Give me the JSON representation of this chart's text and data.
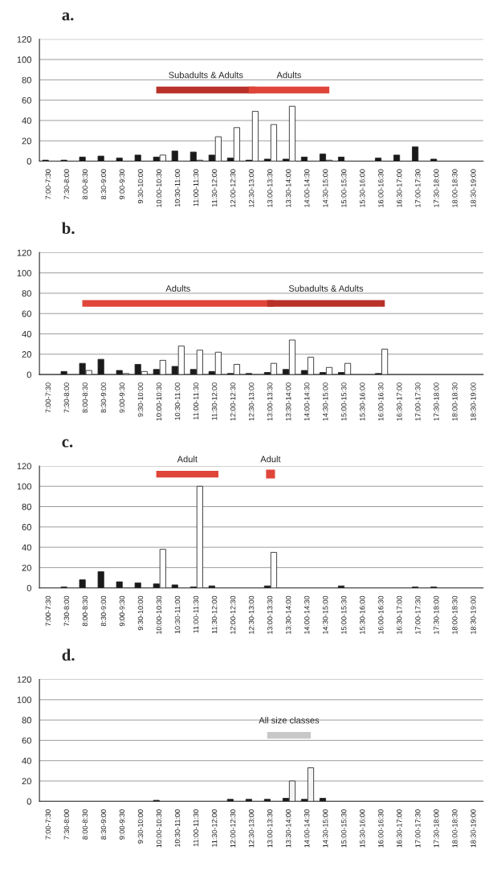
{
  "chart_data": [
    {
      "type": "bar",
      "title": "a.",
      "categories": [
        "7:00-7:30",
        "7:30-8:00",
        "8:00-8:30",
        "8:30-9:00",
        "9:00-9:30",
        "9:30-10:00",
        "10:00-10:30",
        "10:30-11:00",
        "11:00-11:30",
        "11:30-12:00",
        "12:00-12:30",
        "12:30-13:00",
        "13:00-13:30",
        "13:30-14:00",
        "14:00-14:30",
        "14:30-15:00",
        "15:00-15:30",
        "15:30-16:00",
        "16:00-16:30",
        "16:30-17:00",
        "17:00-17:30",
        "17:30-18:00",
        "18:00-18:30",
        "18:30-19:00"
      ],
      "series": [
        {
          "color": "#1a1a1a",
          "values": [
            1,
            1,
            4,
            5,
            3,
            6,
            4,
            10,
            9,
            6,
            3,
            1,
            2,
            2,
            4,
            7,
            4,
            0,
            3,
            6,
            14,
            2,
            0,
            0
          ]
        },
        {
          "color": "#ffffff",
          "values": [
            0,
            0,
            0,
            0,
            0,
            0,
            6,
            0,
            1,
            24,
            33,
            49,
            36,
            54,
            0,
            1,
            0,
            0,
            0,
            0,
            0,
            0,
            0,
            0
          ]
        },
        {
          "type": "line",
          "name": "Subadults & Adults",
          "color": "#b8322a",
          "values": [
            null,
            null,
            null,
            null,
            null,
            null,
            70,
            70,
            70,
            70,
            70,
            70,
            null,
            null,
            null,
            null,
            null,
            null,
            null,
            null,
            null,
            null,
            null,
            null
          ]
        },
        {
          "type": "line",
          "name": "Adults",
          "color": "#e0453a",
          "values": [
            null,
            null,
            null,
            null,
            null,
            null,
            null,
            null,
            null,
            null,
            null,
            70,
            70,
            70,
            70,
            70,
            null,
            null,
            null,
            null,
            null,
            null,
            null,
            null
          ]
        }
      ],
      "ylim": [
        0,
        120
      ],
      "yticks": [
        0,
        20,
        40,
        60,
        80,
        100,
        120
      ],
      "grid": "y"
    },
    {
      "type": "bar",
      "title": "b.",
      "categories": [
        "7:00-7:30",
        "7:30-8:00",
        "8:00-8:30",
        "8:30-9:00",
        "9:00-9:30",
        "9:30-10:00",
        "10:00-10:30",
        "10:30-11:00",
        "11:00-11:30",
        "11:30-12:00",
        "12:00-12:30",
        "12:30-13:00",
        "13:00-13:30",
        "13:30-14:00",
        "14:00-14:30",
        "14:30-15:00",
        "15:00-15:30",
        "15:30-16:00",
        "16:00-16:30",
        "16:30-17:00",
        "17:00-17:30",
        "17:30-18:00",
        "18:00-18:30",
        "18:30-19:00"
      ],
      "series": [
        {
          "color": "#1a1a1a",
          "values": [
            0,
            3,
            11,
            15,
            4,
            10,
            5,
            8,
            5,
            3,
            1,
            1,
            2,
            5,
            4,
            2,
            2,
            0,
            1,
            0,
            0,
            0,
            0,
            0
          ]
        },
        {
          "color": "#ffffff",
          "values": [
            0,
            0,
            4,
            0,
            1,
            3,
            14,
            28,
            24,
            22,
            10,
            0,
            11,
            34,
            17,
            7,
            11,
            0,
            25,
            0,
            0,
            0,
            0,
            0
          ]
        },
        {
          "type": "line",
          "name": "Adults",
          "color": "#e0453a",
          "values": [
            null,
            null,
            70,
            70,
            70,
            70,
            70,
            70,
            70,
            70,
            70,
            70,
            70,
            null,
            null,
            null,
            null,
            null,
            null,
            null,
            null,
            null,
            null,
            null
          ]
        },
        {
          "type": "line",
          "name": "Subadults & Adults",
          "color": "#b8322a",
          "values": [
            null,
            null,
            null,
            null,
            null,
            null,
            null,
            null,
            null,
            null,
            null,
            null,
            70,
            70,
            70,
            70,
            70,
            70,
            70,
            null,
            null,
            null,
            null,
            null
          ]
        }
      ],
      "ylim": [
        0,
        120
      ],
      "yticks": [
        0,
        20,
        40,
        60,
        80,
        100,
        120
      ],
      "grid": "y"
    },
    {
      "type": "bar",
      "title": "c.",
      "categories": [
        "7:00-7:30",
        "7:30-8:00",
        "8:00-8:30",
        "8:30-9:00",
        "9:00-9:30",
        "9:30-10:00",
        "10:00-10:30",
        "10:30-11:00",
        "11:00-11:30",
        "11:30-12:00",
        "12:00-12:30",
        "12:30-13:00",
        "13:00-13:30",
        "13:30-14:00",
        "14:00-14:30",
        "14:30-15:00",
        "15:00-15:30",
        "15:30-16:00",
        "16:00-16:30",
        "16:30-17:00",
        "17:00-17:30",
        "17:30-18:00",
        "18:00-18:30",
        "18:30-19:00"
      ],
      "series": [
        {
          "color": "#1a1a1a",
          "values": [
            0,
            1,
            8,
            16,
            6,
            5,
            4,
            3,
            1,
            2,
            0,
            0,
            2,
            0,
            0,
            0,
            2,
            0,
            0,
            0,
            1,
            1,
            0,
            0
          ]
        },
        {
          "color": "#ffffff",
          "values": [
            0,
            0,
            0,
            0,
            0,
            0,
            38,
            0,
            100,
            null,
            0,
            0,
            35,
            0,
            0,
            0,
            0,
            0,
            0,
            0,
            0,
            0,
            0,
            0
          ]
        },
        {
          "type": "line",
          "name": "Adult",
          "color": "#e0453a",
          "values": [
            null,
            null,
            null,
            null,
            null,
            null,
            112,
            112,
            112,
            112,
            null,
            null,
            null,
            null,
            null,
            null,
            null,
            null,
            null,
            null,
            null,
            null,
            null,
            null
          ]
        },
        {
          "type": "line",
          "name": "Adult",
          "color": "#e0453a",
          "marker": "square",
          "values": [
            null,
            null,
            null,
            null,
            null,
            null,
            null,
            null,
            null,
            null,
            null,
            null,
            112,
            null,
            null,
            null,
            null,
            null,
            null,
            null,
            null,
            null,
            null,
            null
          ]
        }
      ],
      "ylim": [
        0,
        120
      ],
      "yticks": [
        0,
        20,
        40,
        60,
        80,
        100,
        120
      ],
      "grid": "y"
    },
    {
      "type": "bar",
      "title": "d.",
      "categories": [
        "7:00-7:30",
        "7:30-8:00",
        "8:00-8:30",
        "8:30-9:00",
        "9:00-9:30",
        "9:30-10:00",
        "10:00-10:30",
        "10:30-11:00",
        "11:00-11:30",
        "11:30-12:00",
        "12:00-12:30",
        "12:30-13:00",
        "13:00-13:30",
        "13:30-14:00",
        "14:00-14:30",
        "14:30-15:00",
        "15:00-15:30",
        "15:30-16:00",
        "16:00-16:30",
        "16:30-17:00",
        "17:00-17:30",
        "17:30-18:00",
        "18:00-18:30",
        "18:30-19:00"
      ],
      "series": [
        {
          "color": "#1a1a1a",
          "values": [
            0,
            0,
            0,
            0,
            0,
            0,
            1,
            0,
            0,
            0,
            2,
            2,
            2,
            3,
            2,
            3,
            0,
            0,
            0,
            0,
            0,
            0,
            0,
            0
          ]
        },
        {
          "color": "#f4f4f4",
          "values": [
            0,
            0,
            0,
            0,
            0,
            0,
            0,
            0,
            0,
            0,
            0,
            0,
            0,
            20,
            33,
            0,
            0,
            0,
            0,
            0,
            0,
            0,
            0,
            0
          ]
        },
        {
          "type": "line",
          "name": "All size classes",
          "color": "#c8c8c8",
          "values": [
            null,
            null,
            null,
            null,
            null,
            null,
            null,
            null,
            null,
            null,
            null,
            null,
            65,
            65,
            65,
            null,
            null,
            null,
            null,
            null,
            null,
            null,
            null,
            null
          ]
        }
      ],
      "ylim": [
        0,
        120
      ],
      "yticks": [
        0,
        20,
        40,
        60,
        80,
        100,
        120
      ],
      "grid": "y"
    }
  ]
}
